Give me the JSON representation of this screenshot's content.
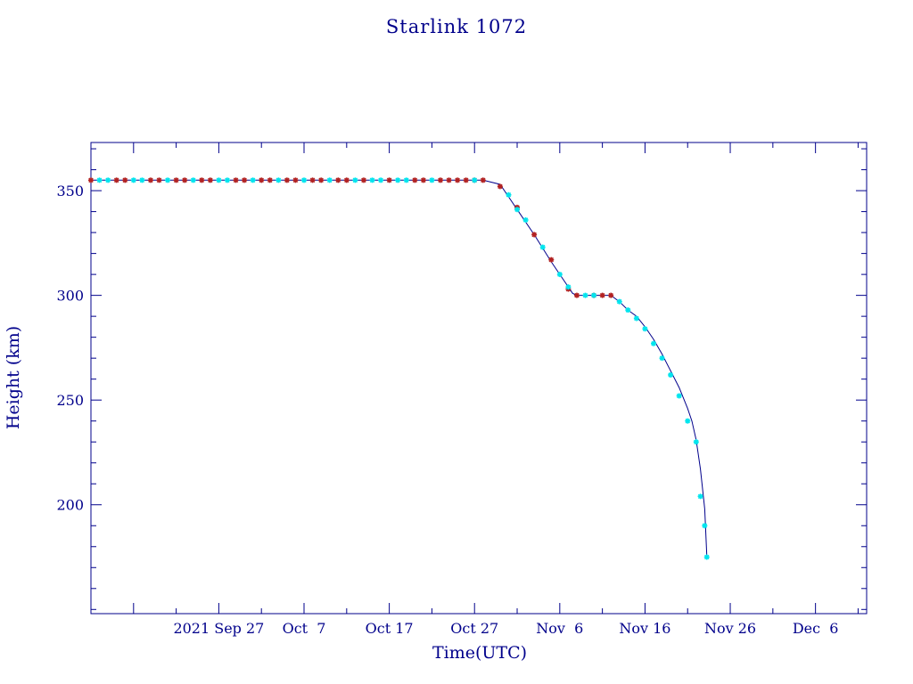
{
  "chart_data": {
    "type": "scatter",
    "title": "Starlink 1072",
    "xlabel": "Time(UTC)",
    "ylabel": "Height (km)",
    "xlim": [
      "2021-09-12",
      "2021-12-12"
    ],
    "ylim": [
      148,
      373
    ],
    "y_ticks": [
      200,
      250,
      300,
      350
    ],
    "y_minor_step": 10,
    "x_ticks": [
      {
        "date": "2021-09-27",
        "label": "2021 Sep 27"
      },
      {
        "date": "2021-10-07",
        "label": "Oct  7"
      },
      {
        "date": "2021-10-17",
        "label": "Oct 17"
      },
      {
        "date": "2021-10-27",
        "label": "Oct 27"
      },
      {
        "date": "2021-11-06",
        "label": "Nov  6"
      },
      {
        "date": "2021-11-16",
        "label": "Nov 16"
      },
      {
        "date": "2021-11-26",
        "label": "Nov 26"
      },
      {
        "date": "2021-12-06",
        "label": "Dec  6"
      }
    ],
    "x_minor_days": 5,
    "grid": false,
    "colors": {
      "axis": "#00008b",
      "line": "#00008b",
      "series_red": "#b22222",
      "series_cyan": "#00e5ee"
    },
    "fit_line": {
      "x": [
        "2021-09-12",
        "2021-09-20",
        "2021-10-01",
        "2021-10-10",
        "2021-10-20",
        "2021-10-28",
        "2021-10-30",
        "2021-10-31",
        "2021-11-01",
        "2021-11-03",
        "2021-11-05",
        "2021-11-07",
        "2021-11-07 12:00",
        "2021-11-08",
        "2021-11-10",
        "2021-11-12",
        "2021-11-13",
        "2021-11-14",
        "2021-11-15",
        "2021-11-16",
        "2021-11-17",
        "2021-11-18",
        "2021-11-19",
        "2021-11-20",
        "2021-11-21",
        "2021-11-21 12:00",
        "2021-11-22",
        "2021-11-22 12:00",
        "2021-11-23",
        "2021-11-23 06:00"
      ],
      "y": [
        355,
        355,
        355,
        355,
        355,
        355,
        353,
        347,
        341,
        329,
        316,
        304,
        301,
        300,
        300,
        300,
        297,
        293,
        290,
        285,
        279,
        272,
        264,
        256,
        246,
        240,
        231,
        217,
        198,
        176
      ]
    },
    "series": [
      {
        "color": "red",
        "x": [
          "2021-09-12",
          "2021-09-15",
          "2021-09-16",
          "2021-09-19",
          "2021-09-20",
          "2021-09-22",
          "2021-09-23",
          "2021-09-25",
          "2021-09-26",
          "2021-09-29",
          "2021-09-30",
          "2021-10-02",
          "2021-10-03",
          "2021-10-05",
          "2021-10-06",
          "2021-10-08",
          "2021-10-09",
          "2021-10-11",
          "2021-10-12",
          "2021-10-14",
          "2021-10-17",
          "2021-10-20",
          "2021-10-21",
          "2021-10-23",
          "2021-10-24",
          "2021-10-25",
          "2021-10-26",
          "2021-10-27",
          "2021-10-28",
          "2021-10-30",
          "2021-11-01",
          "2021-11-03",
          "2021-11-05",
          "2021-11-07",
          "2021-11-08",
          "2021-11-10",
          "2021-11-11",
          "2021-11-12"
        ],
        "y": [
          355,
          355,
          355,
          355,
          355,
          355,
          355,
          355,
          355,
          355,
          355,
          355,
          355,
          355,
          355,
          355,
          355,
          355,
          355,
          355,
          355,
          355,
          355,
          355,
          355,
          355,
          355,
          355,
          355,
          352,
          342,
          329,
          317,
          303,
          300,
          300,
          300,
          300
        ]
      },
      {
        "color": "cyan",
        "x": [
          "2021-09-13",
          "2021-09-14",
          "2021-09-17",
          "2021-09-18",
          "2021-09-21",
          "2021-09-24",
          "2021-09-27",
          "2021-09-28",
          "2021-10-01",
          "2021-10-04",
          "2021-10-07",
          "2021-10-10",
          "2021-10-13",
          "2021-10-15",
          "2021-10-16",
          "2021-10-18",
          "2021-10-19",
          "2021-10-22",
          "2021-10-27",
          "2021-10-31",
          "2021-11-01",
          "2021-11-02",
          "2021-11-04",
          "2021-11-06",
          "2021-11-07",
          "2021-11-09",
          "2021-11-10",
          "2021-11-13",
          "2021-11-14",
          "2021-11-15",
          "2021-11-16",
          "2021-11-17",
          "2021-11-18",
          "2021-11-19",
          "2021-11-20",
          "2021-11-21",
          "2021-11-22",
          "2021-11-22 12:00",
          "2021-11-23",
          "2021-11-23 06:00"
        ],
        "y": [
          355,
          355,
          355,
          355,
          355,
          355,
          355,
          355,
          355,
          355,
          355,
          355,
          355,
          355,
          355,
          355,
          355,
          355,
          355,
          348,
          341,
          336,
          323,
          310,
          304,
          300,
          300,
          297,
          293,
          289,
          284,
          277,
          270,
          262,
          252,
          240,
          230,
          204,
          190,
          175
        ]
      }
    ]
  }
}
